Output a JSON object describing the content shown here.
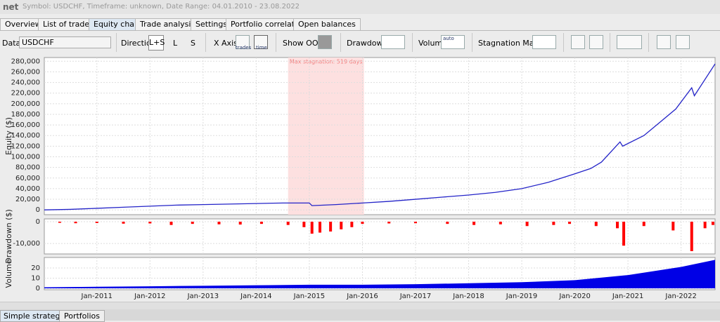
{
  "header": {
    "title": "net",
    "info": "Symbol: USDCHF, Timeframe: unknown, Date Range: 04.01.2010 - 23.08.2022"
  },
  "tabs": [
    "Overview",
    "List of trades",
    "Equity chart",
    "Trade analysis",
    "Settings",
    "Portfolio correlation",
    "Open balances"
  ],
  "toolbar": {
    "data_label": "Data",
    "data_value": "USDCHF",
    "direction_label": "Direction",
    "direction_options": [
      "L+S",
      "L",
      "S"
    ],
    "x_axis_label": "X Axis",
    "x_axis_options": [
      "trades",
      "time"
    ],
    "show_oos_label": "Show OOS",
    "drawdown_label": "Drawdown",
    "volume_label": "Volume",
    "volume_icon": "auto",
    "stagnation_label": "Stagnation Marker"
  },
  "bottom_tabs": [
    "Simple strategies",
    "Portfolios"
  ],
  "chart_data": [
    {
      "type": "line",
      "y_label": "Equity ($)",
      "color": "#2323c8",
      "xlim": [
        2010.01,
        2022.64
      ],
      "ylim": [
        -9000,
        287000
      ],
      "yticks": [
        0,
        {
          "value": 20000,
          "label": "20,000"
        },
        {
          "value": 40000,
          "label": "40,000"
        },
        {
          "value": 60000,
          "label": "60,000"
        },
        {
          "value": 80000,
          "label": "80,000"
        },
        {
          "value": 100000,
          "label": "100,000"
        },
        {
          "value": 120000,
          "label": "120,000"
        },
        {
          "value": 140000,
          "label": "140,000"
        },
        {
          "value": 160000,
          "label": "160,000"
        },
        {
          "value": 180000,
          "label": "180,000"
        },
        {
          "value": 200000,
          "label": "200,000"
        },
        {
          "value": 220000,
          "label": "220,000"
        },
        {
          "value": 240000,
          "label": "240,000"
        },
        {
          "value": 260000,
          "label": "260,000"
        },
        {
          "value": 280000,
          "label": "280,000"
        }
      ],
      "x": [
        2010.01,
        2010.5,
        2011.0,
        2011.5,
        2012.0,
        2012.5,
        2013.0,
        2013.5,
        2014.0,
        2014.5,
        2015.0,
        2015.05,
        2015.5,
        2016.0,
        2016.5,
        2017.0,
        2017.5,
        2018.0,
        2018.5,
        2019.0,
        2019.5,
        2020.0,
        2020.3,
        2020.5,
        2020.85,
        2020.9,
        2021.3,
        2021.6,
        2021.9,
        2022.2,
        2022.25,
        2022.64
      ],
      "values": [
        0,
        1000,
        3000,
        5000,
        7000,
        9000,
        10000,
        11000,
        12000,
        13000,
        13000,
        8000,
        10000,
        13000,
        16000,
        20000,
        24000,
        28000,
        33000,
        40000,
        52000,
        68000,
        78000,
        90000,
        128000,
        120000,
        140000,
        165000,
        190000,
        230000,
        215000,
        275000
      ],
      "stagnation": {
        "start": 2014.6,
        "end": 2016.03,
        "label": "Max stagnation: 519 days",
        "color": "#fde0e0"
      },
      "grid": true
    },
    {
      "type": "bar",
      "y_label": "Drawdown ($)",
      "color": "#ff0000",
      "xlim": [
        2010.01,
        2022.64
      ],
      "ylim": [
        -14800,
        1300
      ],
      "yticks": [
        0,
        {
          "value": -10000,
          "label": "-10,000"
        }
      ],
      "x": [
        2010.3,
        2010.6,
        2011.0,
        2011.5,
        2012.0,
        2012.4,
        2012.8,
        2013.3,
        2013.7,
        2014.1,
        2014.6,
        2014.9,
        2015.05,
        2015.2,
        2015.4,
        2015.6,
        2015.8,
        2016.0,
        2016.5,
        2017.0,
        2017.6,
        2018.1,
        2018.6,
        2019.1,
        2019.6,
        2019.9,
        2020.4,
        2020.8,
        2020.92,
        2021.3,
        2021.85,
        2022.2,
        2022.45,
        2022.6
      ],
      "values": [
        -500,
        -700,
        -600,
        -900,
        -800,
        -1500,
        -1000,
        -1200,
        -1300,
        -1000,
        -1500,
        -2500,
        -5500,
        -5000,
        -4500,
        -3500,
        -2500,
        -1000,
        -800,
        -700,
        -1000,
        -1500,
        -1200,
        -2000,
        -1500,
        -1000,
        -2000,
        -3000,
        -11000,
        -2000,
        -4000,
        -13500,
        -3000,
        -1500
      ],
      "grid": true
    },
    {
      "type": "area",
      "y_label": "Volume",
      "color": "#0000e6",
      "xlim": [
        2010.01,
        2022.64
      ],
      "ylim": [
        -1.4,
        30.3
      ],
      "yticks": [
        0,
        10,
        20
      ],
      "xticks": [
        {
          "value": 2011,
          "label": "Jan-2011"
        },
        {
          "value": 2012,
          "label": "Jan-2012"
        },
        {
          "value": 2013,
          "label": "Jan-2013"
        },
        {
          "value": 2014,
          "label": "Jan-2014"
        },
        {
          "value": 2015,
          "label": "Jan-2015"
        },
        {
          "value": 2016,
          "label": "Jan-2016"
        },
        {
          "value": 2017,
          "label": "Jan-2017"
        },
        {
          "value": 2018,
          "label": "Jan-2018"
        },
        {
          "value": 2019,
          "label": "Jan-2019"
        },
        {
          "value": 2020,
          "label": "Jan-2020"
        },
        {
          "value": 2021,
          "label": "Jan-2021"
        },
        {
          "value": 2022,
          "label": "Jan-2022"
        }
      ],
      "x": [
        2010.01,
        2011,
        2012,
        2013,
        2014,
        2015,
        2016,
        2017,
        2018,
        2019,
        2020,
        2021,
        2022,
        2022.64
      ],
      "values": [
        1,
        1.5,
        2,
        2.5,
        3,
        3.5,
        3.5,
        4,
        5,
        6,
        8,
        13,
        21,
        28
      ],
      "grid": true
    }
  ]
}
